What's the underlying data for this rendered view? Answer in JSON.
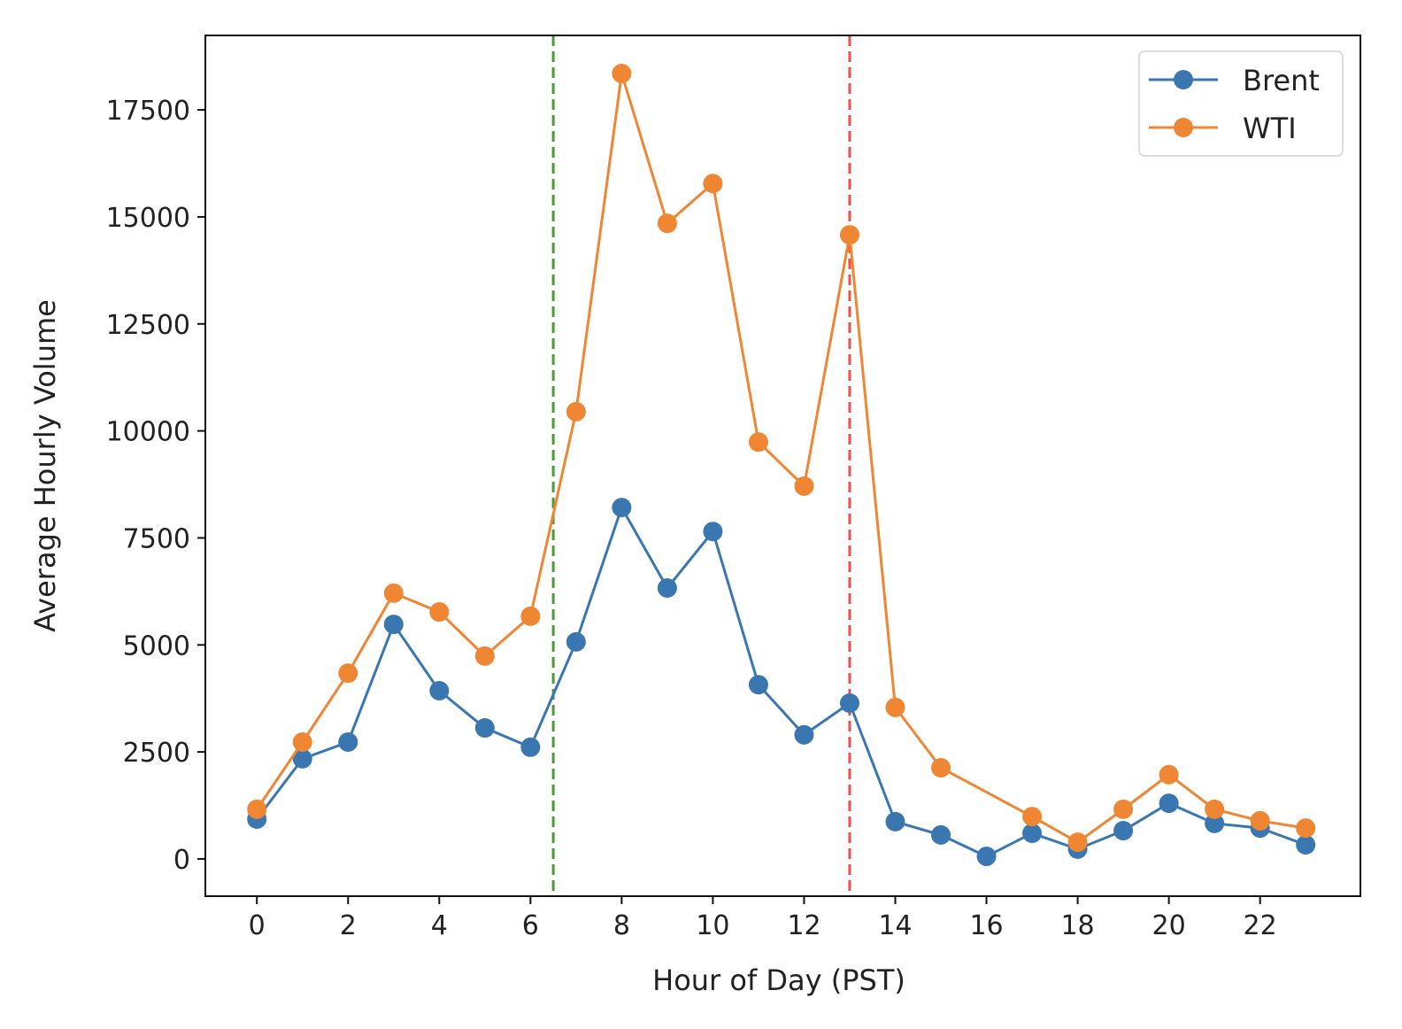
{
  "chart_data": {
    "type": "line",
    "title": "",
    "xlabel": "Hour of Day (PST)",
    "ylabel": "Average Hourly Volume",
    "xlim": [
      -1.13,
      24.2
    ],
    "ylim": [
      -870,
      19240
    ],
    "xticks": [
      0,
      2,
      4,
      6,
      8,
      10,
      12,
      14,
      16,
      18,
      20,
      22
    ],
    "yticks": [
      0,
      2500,
      5000,
      7500,
      10000,
      12500,
      15000,
      17500
    ],
    "grid": false,
    "legend_position": "top-right",
    "x": [
      0,
      1,
      2,
      3,
      4,
      5,
      6,
      7,
      8,
      9,
      10,
      11,
      12,
      13,
      14,
      15,
      16,
      17,
      18,
      19,
      20,
      21,
      22,
      23
    ],
    "series": [
      {
        "name": "Brent",
        "color": "#3a76b0",
        "marker": "circle",
        "values": [
          930,
          2340,
          2730,
          5480,
          3930,
          3060,
          2610,
          5070,
          8210,
          6330,
          7650,
          4070,
          2900,
          3640,
          870,
          560,
          60,
          600,
          230,
          660,
          1300,
          830,
          720,
          330
        ]
      },
      {
        "name": "WTI",
        "color": "#ef8633",
        "marker": "circle",
        "values": [
          1160,
          2730,
          4340,
          6210,
          5770,
          4740,
          5670,
          10450,
          18350,
          14850,
          15780,
          9740,
          8710,
          14580,
          3540,
          2130,
          null,
          990,
          390,
          1160,
          1970,
          1160,
          890,
          720
        ]
      }
    ],
    "vlines": [
      {
        "x": 6.5,
        "color": "#4c9a3a",
        "style": "dashed"
      },
      {
        "x": 13,
        "color": "#e8524a",
        "style": "dashed"
      }
    ]
  }
}
